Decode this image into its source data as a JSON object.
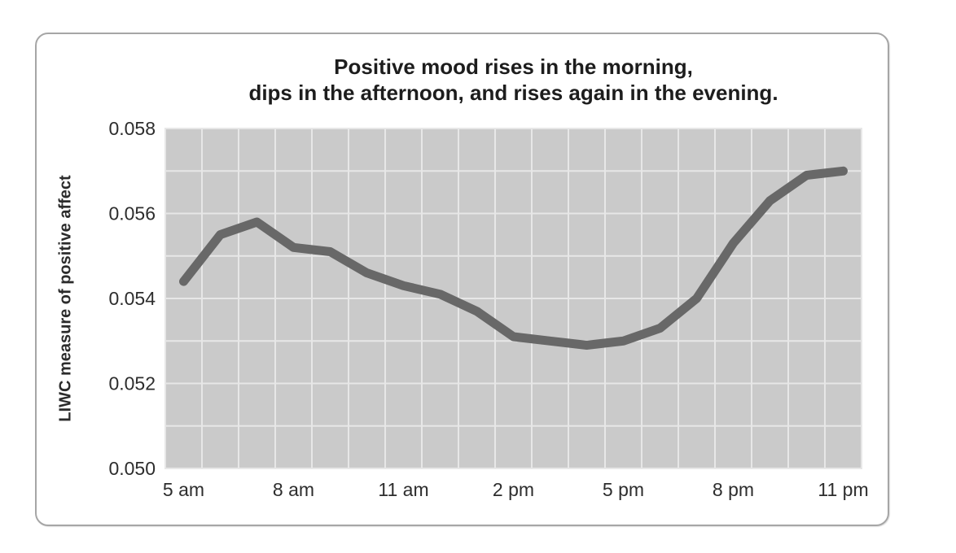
{
  "chart_data": {
    "type": "line",
    "title_lines": [
      "Positive mood rises in the morning,",
      "dips in the afternoon, and rises again in the evening."
    ],
    "ylabel": "LIWC measure of positive affect",
    "xlabel": "",
    "categories": [
      "5 am",
      "6 am",
      "7 am",
      "8 am",
      "9 am",
      "10 am",
      "11 am",
      "12 pm",
      "1 pm",
      "2 pm",
      "3 pm",
      "4 pm",
      "5 pm",
      "6 pm",
      "7 pm",
      "8 pm",
      "9 pm",
      "10 pm",
      "11 pm"
    ],
    "values": [
      0.0544,
      0.0555,
      0.0558,
      0.0552,
      0.0551,
      0.0546,
      0.0543,
      0.0541,
      0.0537,
      0.0531,
      0.053,
      0.0529,
      0.053,
      0.0533,
      0.054,
      0.0553,
      0.0563,
      0.0569,
      0.057
    ],
    "x_tick_labels": [
      "5 am",
      "8 am",
      "11 am",
      "2 pm",
      "5 pm",
      "8 pm",
      "11 pm"
    ],
    "y_tick_labels": [
      "0.058",
      "0.056",
      "0.054",
      "0.052",
      "0.050"
    ],
    "ylim": [
      0.05,
      0.058
    ],
    "y_minor_step": 0.001,
    "grid": true,
    "legend": "none",
    "colors": {
      "plot_background": "#cacaca",
      "gridline": "#e7e7e7",
      "line": "#686868",
      "tick_text": "#2d2d2d",
      "title_text": "#1d1d1d",
      "frame_border": "#a6a6a6"
    }
  }
}
